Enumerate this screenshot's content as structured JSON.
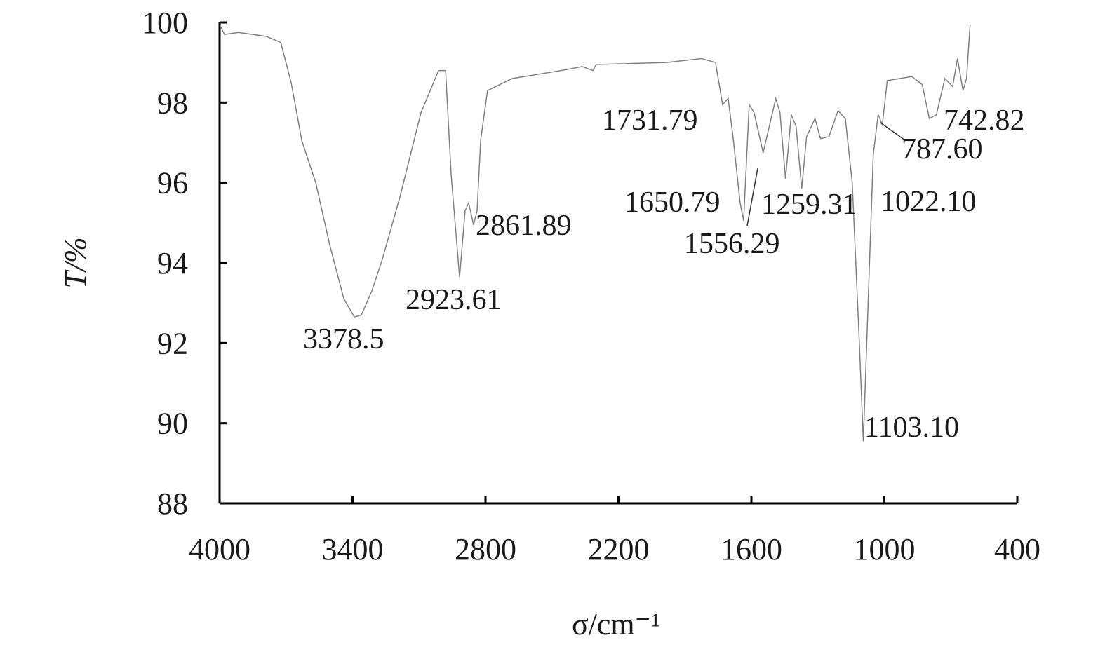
{
  "chart_data": {
    "type": "line",
    "x_label": "σ/cm⁻¹",
    "y_label": "T/%",
    "xlim": [
      4000,
      400
    ],
    "xticks": [
      4000,
      3400,
      2800,
      2200,
      1600,
      1000,
      400
    ],
    "ylim": [
      88,
      100
    ],
    "yticks": [
      88,
      90,
      92,
      94,
      96,
      98,
      100
    ],
    "annotations": [
      "3378.5",
      "2923.61",
      "2861.89",
      "1731.79",
      "1650.79",
      "1556.29",
      "1259.31",
      "1022.10",
      "787.60",
      "742.82",
      "1103.10"
    ],
    "series": [
      {
        "color": "#808080",
        "x": [
          4000,
          3978,
          3915,
          3851,
          3788,
          3724,
          3677,
          3629,
          3566,
          3503,
          3439,
          3392,
          3360,
          3313,
          3265,
          3186,
          3091,
          3012,
          2980,
          2955,
          2917,
          2892,
          2876,
          2854,
          2838,
          2822,
          2791,
          2680,
          2458,
          2363,
          2316,
          2300,
          1983,
          1825,
          1762,
          1730,
          1705,
          1683,
          1651,
          1635,
          1610,
          1588,
          1547,
          1490,
          1471,
          1446,
          1420,
          1398,
          1373,
          1351,
          1313,
          1288,
          1250,
          1209,
          1176,
          1145,
          1114,
          1095,
          1072,
          1050,
          1028,
          1009,
          987,
          876,
          829,
          797,
          765,
          727,
          692,
          670,
          645,
          629,
          613
        ],
        "values": [
          99.95,
          99.7,
          99.75,
          99.7,
          99.65,
          99.5,
          98.5,
          97.05,
          96.0,
          94.45,
          93.1,
          92.65,
          92.7,
          93.3,
          94.1,
          95.65,
          97.75,
          98.8,
          98.8,
          96.2,
          93.65,
          95.3,
          95.5,
          94.95,
          95.3,
          97.05,
          98.3,
          98.6,
          98.8,
          98.9,
          98.8,
          98.95,
          99.0,
          99.1,
          99.0,
          97.95,
          98.1,
          97.15,
          95.5,
          95.05,
          97.95,
          97.75,
          96.75,
          98.1,
          97.75,
          96.1,
          97.7,
          97.4,
          95.85,
          97.15,
          97.6,
          97.1,
          97.15,
          97.8,
          97.6,
          96.0,
          92.15,
          89.55,
          93.2,
          96.7,
          97.7,
          97.45,
          98.55,
          98.65,
          98.45,
          97.6,
          97.7,
          98.6,
          98.4,
          99.1,
          98.3,
          98.6,
          99.95
        ]
      }
    ]
  }
}
